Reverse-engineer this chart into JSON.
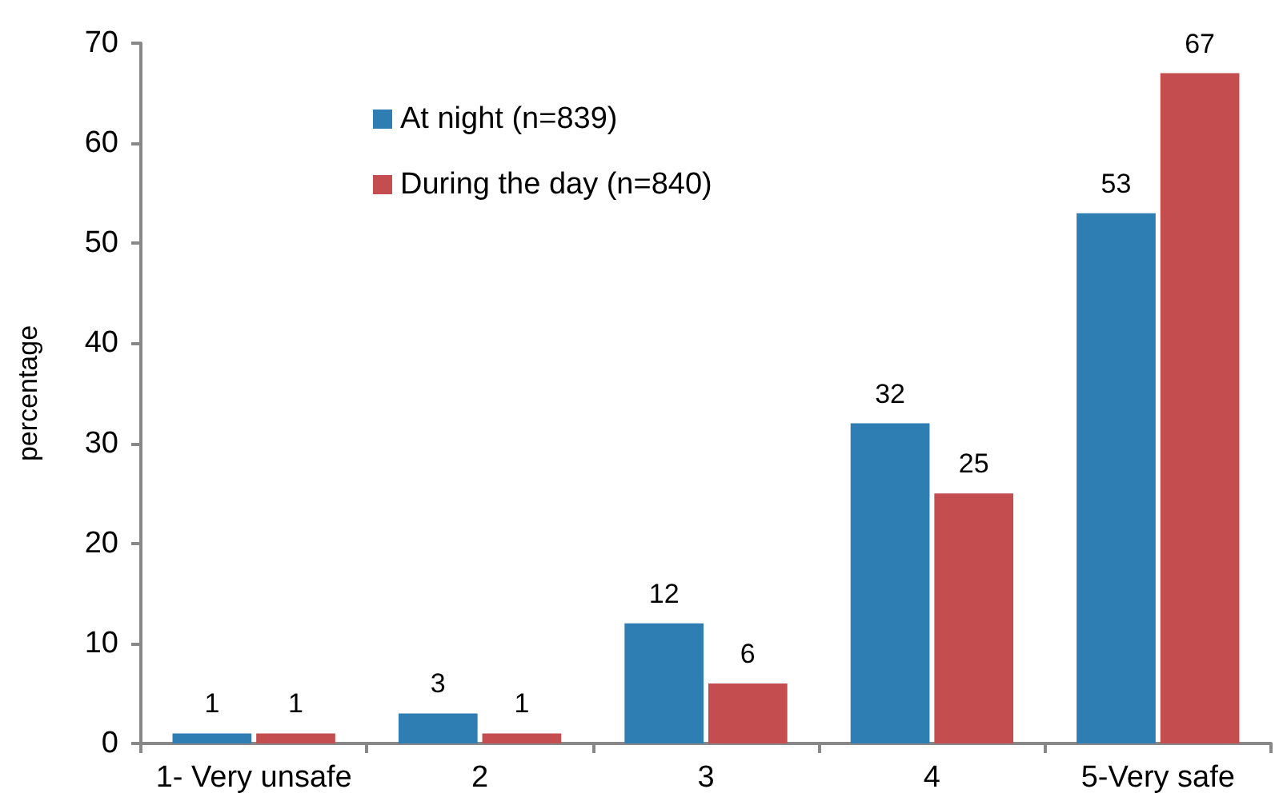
{
  "chart_data": {
    "type": "bar",
    "ylabel": "percentage",
    "categories": [
      "1- Very unsafe",
      "2",
      "3",
      "4",
      "5-Very safe"
    ],
    "series": [
      {
        "name": "At night (n=839)",
        "color": "#2e7eb4",
        "values": [
          1,
          3,
          12,
          32,
          53
        ]
      },
      {
        "name": "During the day (n=840)",
        "color": "#c44d4f",
        "values": [
          1,
          1,
          6,
          25,
          67
        ]
      }
    ],
    "ylim": [
      0,
      70
    ],
    "yticks": [
      0,
      10,
      20,
      30,
      40,
      50,
      60,
      70
    ],
    "legend": "top",
    "data_labels": true
  }
}
